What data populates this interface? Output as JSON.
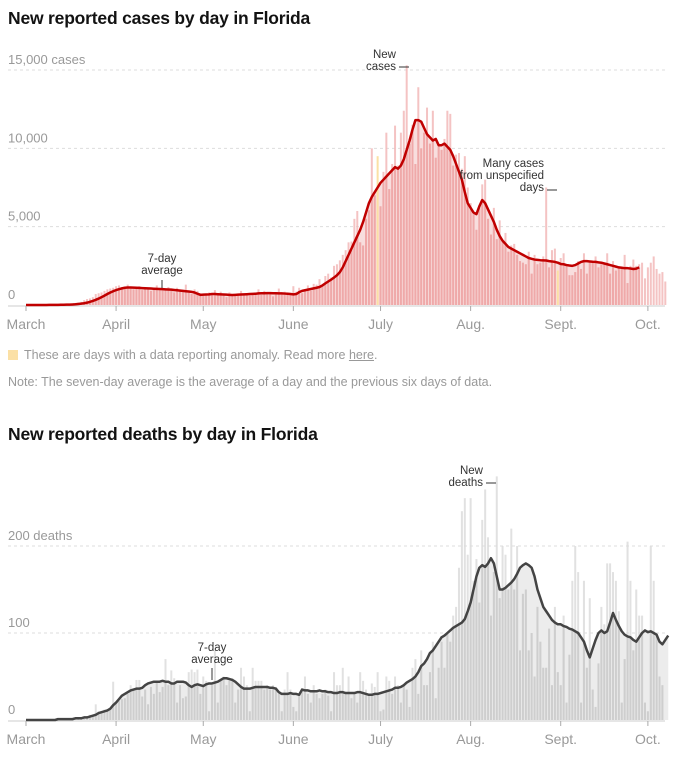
{
  "legend": {
    "anomaly_text": "These are days with a data reporting anomaly. Read more ",
    "link_text": "here",
    "trailing": ".",
    "anomaly_color": "#fbe0a5"
  },
  "note": "Note: The seven-day average is the average of a day and the previous six days of data.",
  "chart_data": [
    {
      "type": "bar",
      "title": "New reported cases by day in Florida",
      "xlabel": "",
      "ylabel": "cases",
      "start_date": "March 1",
      "x_ticks": [
        "March",
        "April",
        "May",
        "June",
        "July",
        "Aug.",
        "Sept.",
        "Oct."
      ],
      "x_tick_day_index": [
        0,
        31,
        61,
        92,
        122,
        153,
        184,
        214
      ],
      "y_ticks": [
        0,
        5000,
        10000,
        15000
      ],
      "y_tick_labels": [
        "0",
        "5,000",
        "10,000",
        "15,000 cases"
      ],
      "ylim": [
        0,
        15000
      ],
      "grid": true,
      "colors": {
        "bar": "#f2b8b8",
        "bar_below": "#ec9f9f",
        "area": "#f8dede",
        "line": "#c00000",
        "anomaly": "#fbe0a5"
      },
      "annotations": [
        {
          "text": [
            "New",
            "cases"
          ],
          "target": "peak daily bar"
        },
        {
          "text": [
            "7-day",
            "average"
          ],
          "target": "average line, mid-April"
        },
        {
          "text": [
            "Many cases",
            "from unspecified",
            "days"
          ],
          "target": "anomaly bar, Sept. 1"
        }
      ],
      "anomaly_days": [
        121,
        183
      ],
      "series": [
        {
          "name": "New cases",
          "values": [
            0,
            0,
            0,
            0,
            0,
            2,
            4,
            3,
            5,
            6,
            10,
            17,
            20,
            30,
            35,
            50,
            70,
            120,
            160,
            200,
            310,
            380,
            420,
            500,
            700,
            750,
            800,
            900,
            1000,
            1050,
            1100,
            1200,
            1250,
            1130,
            1100,
            1300,
            1150,
            1000,
            1100,
            1200,
            950,
            1100,
            1050,
            900,
            1000,
            1250,
            1000,
            950,
            1050,
            1150,
            900,
            800,
            1100,
            1000,
            950,
            1300,
            850,
            700,
            1000,
            900,
            750,
            600,
            700,
            800,
            700,
            950,
            650,
            850,
            700,
            500,
            800,
            650,
            700,
            600,
            900,
            650,
            750,
            600,
            700,
            800,
            1000,
            650,
            900,
            750,
            700,
            550,
            800,
            1050,
            700,
            850,
            750,
            650,
            1200,
            850,
            1100,
            750,
            1000,
            1250,
            900,
            1350,
            1300,
            1650,
            1200,
            1850,
            2000,
            1750,
            2500,
            2600,
            2850,
            3200,
            3500,
            4000,
            4050,
            5500,
            6000,
            4000,
            3800,
            5500,
            6050,
            10000,
            7000,
            9500,
            6300,
            8500,
            11000,
            7400,
            9000,
            11450,
            8900,
            11000,
            12400,
            15300,
            10300,
            11500,
            9000,
            13900,
            10000,
            11000,
            12600,
            10300,
            12400,
            9400,
            10200,
            9900,
            10600,
            12400,
            12200,
            8900,
            9600,
            9700,
            8700,
            9500,
            7500,
            6500,
            5800,
            4800,
            6200,
            7700,
            8000,
            5500,
            4500,
            6200,
            4200,
            5400,
            4100,
            4600,
            3400,
            3800,
            3900,
            3200,
            2800,
            2700,
            2600,
            3400,
            2000,
            3200,
            2600,
            2700,
            3100,
            7500,
            2400,
            3500,
            3600,
            2200,
            3000,
            3300,
            2500,
            1900,
            1900,
            2100,
            2800,
            2300,
            3300,
            2000,
            2700,
            2800,
            3100,
            2400,
            2600,
            2700,
            3300,
            2000,
            2800,
            2200,
            2400,
            2400,
            3200,
            1400,
            2500,
            2900,
            2500,
            2600,
            2700,
            1700,
            2400,
            2700,
            3100,
            2300,
            2000,
            2100,
            1500
          ]
        },
        {
          "name": "7-day average",
          "values": [
            0,
            0,
            0,
            0,
            1,
            1,
            2,
            3,
            4,
            5,
            7,
            9,
            12,
            16,
            21,
            27,
            35,
            47,
            65,
            85,
            110,
            150,
            200,
            260,
            330,
            410,
            500,
            600,
            700,
            800,
            880,
            950,
            1010,
            1060,
            1100,
            1120,
            1120,
            1110,
            1100,
            1090,
            1080,
            1070,
            1060,
            1050,
            1040,
            1030,
            1020,
            1010,
            1000,
            990,
            980,
            960,
            940,
            920,
            900,
            880,
            860,
            840,
            800,
            720,
            650,
            660,
            670,
            680,
            700,
            700,
            690,
            680,
            670,
            660,
            650,
            640,
            650,
            660,
            670,
            680,
            690,
            700,
            710,
            720,
            740,
            750,
            750,
            760,
            760,
            750,
            750,
            740,
            740,
            730,
            720,
            700,
            680,
            700,
            820,
            900,
            940,
            980,
            1020,
            1060,
            1100,
            1150,
            1250,
            1380,
            1500,
            1620,
            1750,
            1900,
            2100,
            2400,
            2800,
            3200,
            3600,
            4000,
            4400,
            4800,
            5300,
            5900,
            6500,
            6900,
            7200,
            7500,
            7800,
            8000,
            8200,
            8400,
            8600,
            8800,
            8700,
            8900,
            9300,
            9900,
            10500,
            11200,
            11800,
            11800,
            11700,
            11300,
            10900,
            10700,
            10500,
            10600,
            10200,
            10200,
            10300,
            10100,
            9900,
            9500,
            9000,
            8500,
            8000,
            7200,
            6500,
            6200,
            5900,
            5800,
            6300,
            6700,
            6500,
            6100,
            5700,
            5300,
            4800,
            4400,
            4100,
            3900,
            3700,
            3600,
            3500,
            3400,
            3300,
            3200,
            3100,
            3000,
            2950,
            2900,
            2880,
            2860,
            2850,
            2840,
            2800,
            2780,
            2750,
            2700,
            2620,
            2600,
            2550,
            2520,
            2500,
            2550,
            2650,
            2750,
            2800,
            2800,
            2780,
            2760,
            2750,
            2720,
            2700,
            2650,
            2600,
            2550,
            2500,
            2450,
            2400,
            2380,
            2350,
            2350,
            2330,
            2300,
            2320,
            2400
          ]
        }
      ]
    },
    {
      "type": "bar",
      "title": "New reported deaths by day in Florida",
      "xlabel": "",
      "ylabel": "deaths",
      "start_date": "March 1",
      "x_ticks": [
        "March",
        "April",
        "May",
        "June",
        "July",
        "Aug.",
        "Sept.",
        "Oct."
      ],
      "x_tick_day_index": [
        0,
        31,
        61,
        92,
        122,
        153,
        184,
        214
      ],
      "y_ticks": [
        0,
        100,
        200
      ],
      "y_tick_labels": [
        "0",
        "100",
        "200 deaths"
      ],
      "ylim": [
        0,
        200
      ],
      "grid": true,
      "colors": {
        "bar": "#dcdcdc",
        "bar_below": "#c8c8c8",
        "area": "#ececec",
        "line": "#444444"
      },
      "annotations": [
        {
          "text": [
            "New",
            "deaths"
          ],
          "target": "peak daily bar"
        },
        {
          "text": [
            "7-day",
            "average"
          ],
          "target": "average line, early May"
        }
      ],
      "series": [
        {
          "name": "New deaths",
          "values": [
            0,
            0,
            0,
            0,
            0,
            0,
            1,
            0,
            1,
            0,
            1,
            1,
            2,
            1,
            1,
            2,
            1,
            2,
            3,
            2,
            3,
            4,
            6,
            5,
            18,
            10,
            8,
            12,
            11,
            12,
            44,
            20,
            22,
            24,
            25,
            30,
            40,
            35,
            46,
            46,
            27,
            35,
            18,
            38,
            30,
            45,
            32,
            38,
            70,
            40,
            57,
            48,
            20,
            40,
            25,
            27,
            55,
            58,
            55,
            58,
            30,
            50,
            45,
            10,
            40,
            80,
            20,
            45,
            50,
            40,
            45,
            48,
            20,
            35,
            60,
            50,
            40,
            10,
            60,
            45,
            45,
            45,
            35,
            40,
            35,
            40,
            38,
            30,
            10,
            35,
            55,
            35,
            15,
            10,
            30,
            35,
            50,
            30,
            20,
            40,
            30,
            25,
            30,
            35,
            28,
            10,
            55,
            40,
            40,
            60,
            30,
            50,
            25,
            30,
            20,
            55,
            45,
            35,
            30,
            42,
            38,
            55,
            10,
            12,
            50,
            45,
            30,
            50,
            40,
            20,
            40,
            35,
            15,
            60,
            70,
            30,
            80,
            40,
            40,
            55,
            90,
            25,
            60,
            90,
            60,
            100,
            90,
            120,
            130,
            175,
            240,
            255,
            190,
            255,
            160,
            185,
            135,
            230,
            265,
            210,
            120,
            170,
            280,
            140,
            200,
            190,
            150,
            220,
            150,
            200,
            80,
            145,
            150,
            80,
            100,
            50,
            130,
            90,
            60,
            60,
            105,
            40,
            130,
            55,
            40,
            120,
            20,
            75,
            160,
            200,
            170,
            20,
            160,
            60,
            140,
            35,
            15,
            65,
            130,
            110,
            180,
            180,
            170,
            160,
            125,
            20,
            70,
            205,
            160,
            80,
            150,
            120,
            120,
            20,
            10,
            200,
            160,
            100,
            50,
            40
          ]
        },
        {
          "name": "7-day average",
          "values": [
            0,
            0,
            0,
            0,
            0,
            0,
            0,
            0,
            0,
            0,
            0,
            1,
            1,
            1,
            1,
            1,
            1,
            2,
            2,
            2,
            3,
            3,
            4,
            5,
            6,
            8,
            9,
            10,
            11,
            13,
            17,
            20,
            24,
            28,
            30,
            32,
            34,
            35,
            36,
            36,
            37,
            40,
            42,
            43,
            44,
            44,
            44,
            45,
            44,
            44,
            42,
            42,
            44,
            44,
            44,
            43,
            40,
            38,
            40,
            41,
            40,
            39,
            41,
            42,
            42,
            43,
            44,
            46,
            48,
            48,
            47,
            46,
            44,
            41,
            38,
            36,
            36,
            36,
            37,
            38,
            38,
            38,
            38,
            38,
            37,
            37,
            36,
            32,
            30,
            30,
            30,
            31,
            30,
            30,
            29,
            35,
            34,
            34,
            33,
            33,
            33,
            34,
            33,
            33,
            32,
            32,
            31,
            31,
            32,
            32,
            31,
            31,
            31,
            31,
            32,
            32,
            31,
            30,
            29,
            29,
            30,
            30,
            31,
            32,
            33,
            34,
            35,
            37,
            37,
            38,
            40,
            43,
            45,
            47,
            50,
            55,
            62,
            65,
            70,
            77,
            80,
            85,
            90,
            95,
            97,
            100,
            103,
            106,
            108,
            110,
            112,
            116,
            125,
            135,
            150,
            165,
            175,
            178,
            176,
            180,
            186,
            180,
            165,
            150,
            150,
            152,
            155,
            158,
            162,
            168,
            175,
            178,
            180,
            178,
            175,
            165,
            150,
            140,
            130,
            125,
            120,
            115,
            112,
            110,
            110,
            108,
            107,
            105,
            104,
            102,
            100,
            95,
            90,
            80,
            72,
            82,
            92,
            100,
            103,
            100,
            102,
            112,
            123,
            115,
            108,
            102,
            98,
            96,
            95,
            92,
            90,
            95,
            100,
            103,
            101,
            102,
            100,
            98,
            90,
            87,
            92,
            97
          ]
        }
      ]
    }
  ]
}
